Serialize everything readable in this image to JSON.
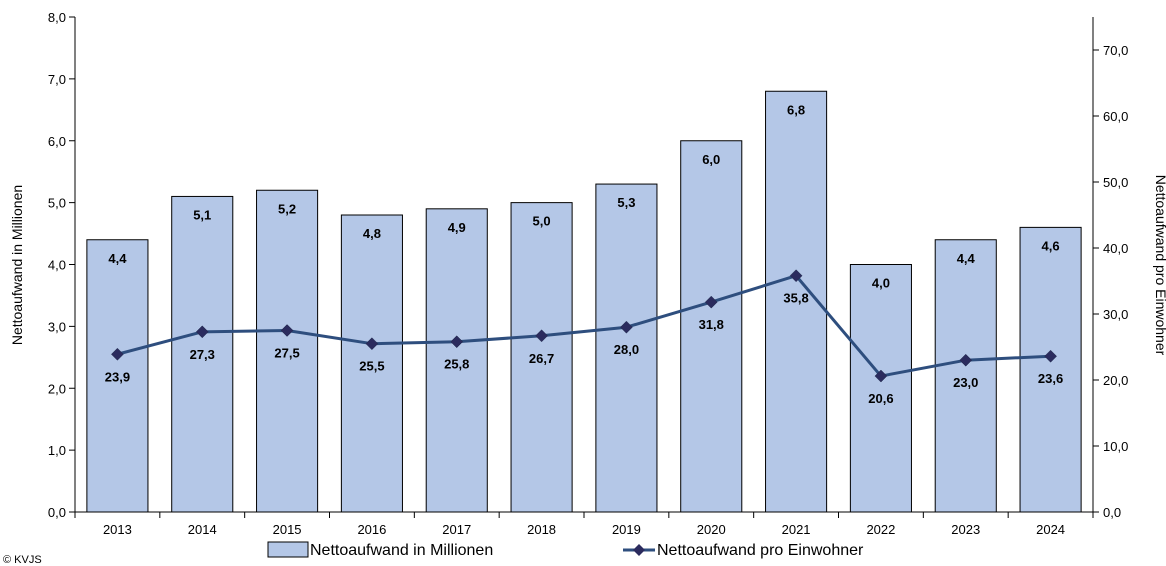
{
  "chart_data": {
    "type": "bar+line",
    "categories": [
      "2013",
      "2014",
      "2015",
      "2016",
      "2017",
      "2018",
      "2019",
      "2020",
      "2021",
      "2022",
      "2023",
      "2024"
    ],
    "series": [
      {
        "name": "Nettoaufwand in Millionen",
        "type": "bar",
        "axis": "left",
        "values": [
          4.4,
          5.1,
          5.2,
          4.8,
          4.9,
          5.0,
          5.3,
          6.0,
          6.8,
          4.0,
          4.4,
          4.6
        ],
        "labels": [
          "4,4",
          "5,1",
          "5,2",
          "4,8",
          "4,9",
          "5,0",
          "5,3",
          "6,0",
          "6,8",
          "4,0",
          "4,4",
          "4,6"
        ],
        "color": "#b4c7e7"
      },
      {
        "name": "Nettoaufwand pro Einwohner",
        "type": "line",
        "axis": "right",
        "values": [
          23.9,
          27.3,
          27.5,
          25.5,
          25.8,
          26.7,
          28.0,
          31.8,
          35.8,
          20.6,
          23.0,
          23.6
        ],
        "labels": [
          "23,9",
          "27,3",
          "27,5",
          "25,5",
          "25,8",
          "26,7",
          "28,0",
          "31,8",
          "35,8",
          "20,6",
          "23,0",
          "23,6"
        ],
        "color": "#2e4e7e",
        "marker_color": "#2b2b5e"
      }
    ],
    "ylabel_left": "Nettoaufwand in Millionen",
    "ylabel_right": "Nettoaufwand pro Einwohner",
    "ylim_left": [
      0,
      8
    ],
    "ylim_right": [
      0,
      75
    ],
    "yticks_left": [
      0,
      1,
      2,
      3,
      4,
      5,
      6,
      7,
      8
    ],
    "yticks_left_labels": [
      "0,0",
      "1,0",
      "2,0",
      "3,0",
      "4,0",
      "5,0",
      "6,0",
      "7,0",
      "8,0"
    ],
    "yticks_right": [
      0,
      10,
      20,
      30,
      40,
      50,
      60,
      70
    ],
    "yticks_right_labels": [
      "0,0",
      "10,0",
      "20,0",
      "30,0",
      "40,0",
      "50,0",
      "60,0",
      "70,0"
    ],
    "grid": false,
    "legend": "bottom"
  },
  "copyright": "© KVJS"
}
